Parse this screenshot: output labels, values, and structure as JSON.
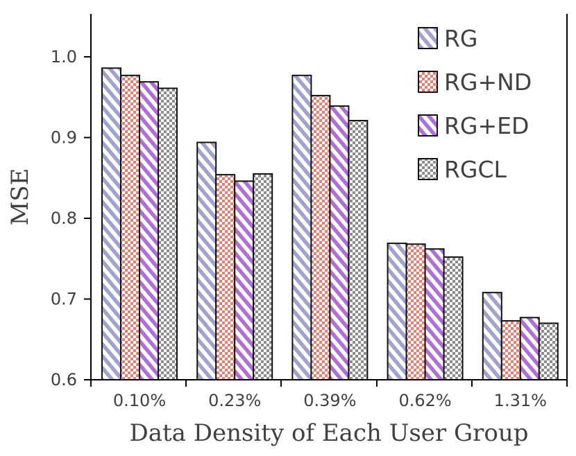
{
  "chart_data": {
    "type": "bar",
    "title": "",
    "xlabel": "Data Density of  Each User Group",
    "ylabel": "MSE",
    "ylim": [
      0.6,
      1.05
    ],
    "yticks": [
      0.6,
      0.7,
      0.8,
      0.9,
      1.0
    ],
    "ytick_labels": [
      "0.6",
      "0.7",
      "0.8",
      "0.9",
      "1.0"
    ],
    "grid": false,
    "legend_position": "top-right",
    "categories": [
      "0.10%",
      "0.23%",
      "0.39%",
      "0.62%",
      "1.31%"
    ],
    "series": [
      {
        "name": "RG",
        "values": [
          0.986,
          0.894,
          0.977,
          0.769,
          0.708
        ],
        "pattern": "diagonal-stripes",
        "color": "#9fa3cf"
      },
      {
        "name": "RG+ND",
        "values": [
          0.977,
          0.854,
          0.952,
          0.768,
          0.673
        ],
        "pattern": "checkerboard",
        "color": "#ef7b6e"
      },
      {
        "name": "RG+ED",
        "values": [
          0.969,
          0.846,
          0.939,
          0.762,
          0.677
        ],
        "pattern": "diagonal-stripes",
        "color": "#b06fd6"
      },
      {
        "name": "RGCL",
        "values": [
          0.961,
          0.855,
          0.921,
          0.752,
          0.67
        ],
        "pattern": "checkerboard",
        "color": "#8c8c8c"
      }
    ]
  }
}
